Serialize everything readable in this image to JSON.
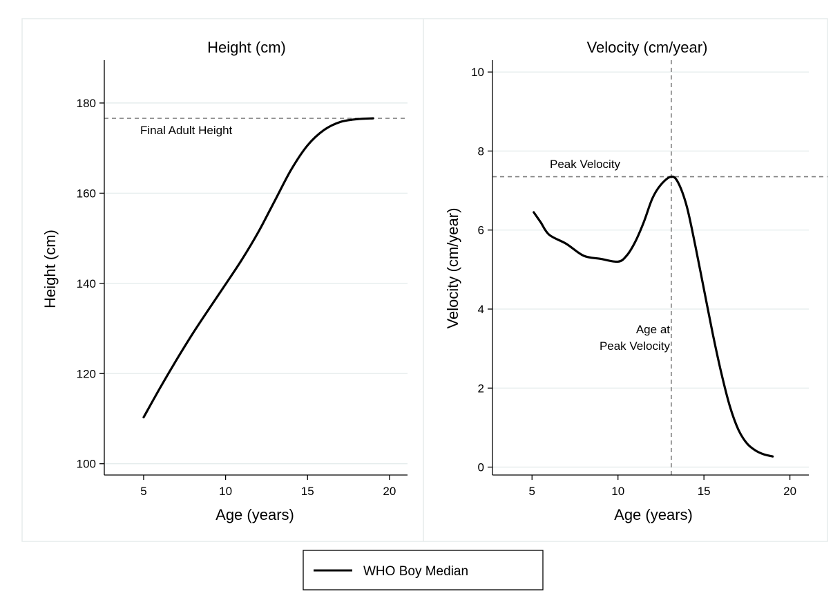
{
  "colors": {
    "series": "#000000",
    "grid": "#e4ecec",
    "panel_border": "#e6ecec",
    "reference_line": "#808080",
    "background": "#ffffff"
  },
  "legend": {
    "label": "WHO Boy Median",
    "placement": "bottom-center"
  },
  "chart_data": [
    {
      "type": "line",
      "title": "Height (cm)",
      "xlabel": "Age (years)",
      "ylabel": "Height (cm)",
      "xlim": [
        2.6,
        21.1
      ],
      "ylim": [
        97.5,
        189.5
      ],
      "xticks": [
        5,
        10,
        15,
        20
      ],
      "yticks": [
        100,
        120,
        140,
        160,
        180
      ],
      "grid": true,
      "series": [
        {
          "name": "WHO Boy Median",
          "x": [
            5,
            6,
            7,
            8,
            9,
            10,
            11,
            12,
            13,
            14,
            15,
            16,
            17,
            18,
            19
          ],
          "y": [
            110.3,
            116.8,
            123.0,
            128.9,
            134.4,
            139.8,
            145.3,
            151.4,
            158.3,
            165.2,
            170.6,
            174.0,
            175.8,
            176.4,
            176.6
          ]
        }
      ],
      "reference_lines": [
        {
          "orientation": "horizontal",
          "value": 176.6,
          "label": "Final Adult Height"
        }
      ]
    },
    {
      "type": "line",
      "title": "Velocity (cm/year)",
      "xlabel": "Age (years)",
      "ylabel": "Velocity (cm/year)",
      "xlim": [
        2.7,
        21.1
      ],
      "ylim": [
        -0.2,
        10.3
      ],
      "xticks": [
        5,
        10,
        15,
        20
      ],
      "yticks": [
        0,
        2,
        4,
        6,
        8,
        10
      ],
      "grid": true,
      "series": [
        {
          "name": "WHO Boy Median",
          "x": [
            5.1,
            5.5,
            6.0,
            7.0,
            8.0,
            9.0,
            10.0,
            10.5,
            11.0,
            11.5,
            12.0,
            12.5,
            13.1,
            13.5,
            14.0,
            14.5,
            15.0,
            15.5,
            16.0,
            16.5,
            17.0,
            17.5,
            18.0,
            18.5,
            19.0
          ],
          "y": [
            6.45,
            6.2,
            5.88,
            5.65,
            5.35,
            5.27,
            5.2,
            5.35,
            5.7,
            6.2,
            6.8,
            7.15,
            7.35,
            7.2,
            6.6,
            5.6,
            4.5,
            3.4,
            2.4,
            1.55,
            0.95,
            0.6,
            0.42,
            0.32,
            0.27
          ]
        }
      ],
      "reference_lines": [
        {
          "orientation": "horizontal",
          "value": 7.35,
          "label": "Peak Velocity"
        },
        {
          "orientation": "vertical",
          "value": 13.1,
          "label": "Age at Peak Velocity",
          "label_lines": [
            "Age at",
            "Peak Velocity"
          ]
        }
      ]
    }
  ]
}
